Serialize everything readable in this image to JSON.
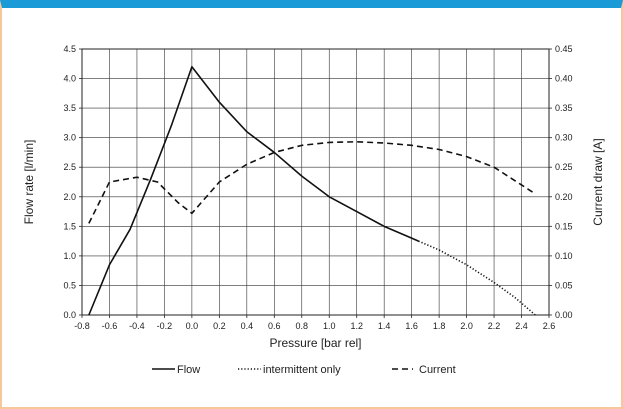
{
  "chart_data": {
    "type": "line",
    "xlabel": "Pressure [bar rel]",
    "ylabel_left": "Flow rate [l/min]",
    "ylabel_right": "Current draw [A]",
    "xlim": [
      -0.8,
      2.6
    ],
    "ylim_left": [
      0,
      4.5
    ],
    "ylim_right": [
      0,
      0.45
    ],
    "grid": true,
    "legend_position": "bottom-center",
    "x_ticks": [
      "-0.8",
      "-0.6",
      "-0.4",
      "-0.2",
      "0.0",
      "0.2",
      "0.4",
      "0.6",
      "0.8",
      "1.0",
      "1.2",
      "1.4",
      "1.6",
      "1.8",
      "2.0",
      "2.2",
      "2.4",
      "2.6"
    ],
    "y_left_ticks": [
      "0.0",
      "0.5",
      "1.0",
      "1.5",
      "2.0",
      "2.5",
      "3.0",
      "3.5",
      "4.0",
      "4.5"
    ],
    "y_right_ticks": [
      "0.00",
      "0.05",
      "0.10",
      "0.15",
      "0.20",
      "0.25",
      "0.30",
      "0.35",
      "0.40",
      "0.45"
    ],
    "series": [
      {
        "name": "Flow",
        "axis": "left",
        "style": "solid",
        "x": [
          -0.75,
          -0.6,
          -0.45,
          -0.3,
          -0.15,
          0.0,
          0.2,
          0.4,
          0.6,
          0.8,
          1.0,
          1.2,
          1.4,
          1.6,
          1.65
        ],
        "y": [
          0.0,
          0.85,
          1.45,
          2.3,
          3.2,
          4.2,
          3.6,
          3.1,
          2.75,
          2.35,
          2.0,
          1.75,
          1.5,
          1.3,
          1.25
        ]
      },
      {
        "name": "intermittent only",
        "axis": "left",
        "style": "dotted",
        "x": [
          1.65,
          1.8,
          2.0,
          2.2,
          2.35,
          2.5
        ],
        "y": [
          1.25,
          1.1,
          0.85,
          0.55,
          0.3,
          0.0
        ]
      },
      {
        "name": "Current",
        "axis": "right",
        "style": "dashed",
        "x": [
          -0.75,
          -0.6,
          -0.4,
          -0.25,
          -0.1,
          0.0,
          0.2,
          0.4,
          0.6,
          0.8,
          1.0,
          1.2,
          1.4,
          1.6,
          1.8,
          2.0,
          2.2,
          2.4,
          2.5
        ],
        "y": [
          0.155,
          0.225,
          0.233,
          0.225,
          0.19,
          0.172,
          0.225,
          0.255,
          0.275,
          0.287,
          0.292,
          0.293,
          0.291,
          0.287,
          0.28,
          0.268,
          0.25,
          0.22,
          0.205
        ]
      }
    ]
  },
  "colors": {
    "frame_top": "#1a9ad6",
    "frame_side": "#f4c89a",
    "line": "#111111",
    "grid": "#333333"
  }
}
